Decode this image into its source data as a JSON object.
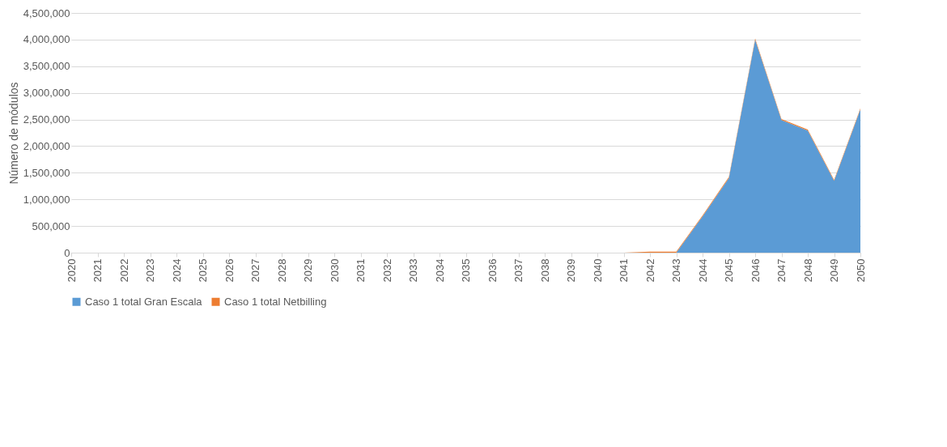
{
  "chart_data": {
    "type": "area",
    "stacked": true,
    "ylabel": "Número de módulos",
    "categories": [
      "2020",
      "2021",
      "2022",
      "2023",
      "2024",
      "2025",
      "2026",
      "2027",
      "2028",
      "2029",
      "2030",
      "2031",
      "2032",
      "2033",
      "2034",
      "2035",
      "2036",
      "2037",
      "2038",
      "2039",
      "2040",
      "2041",
      "2042",
      "2043",
      "2044",
      "2045",
      "2046",
      "2047",
      "2048",
      "2049",
      "2050"
    ],
    "series": [
      {
        "name": "Caso 1 total Gran Escala",
        "color": "#5b9bd5",
        "values": [
          0,
          0,
          0,
          0,
          0,
          0,
          0,
          0,
          0,
          0,
          0,
          0,
          0,
          0,
          0,
          0,
          0,
          0,
          0,
          0,
          0,
          0,
          0,
          0,
          680000,
          1400000,
          4000000,
          2490000,
          2290000,
          1350000,
          2690000
        ]
      },
      {
        "name": "Caso 1 total Netbilling",
        "color": "#ed7d31",
        "values": [
          0,
          0,
          0,
          0,
          0,
          0,
          0,
          0,
          0,
          0,
          0,
          0,
          0,
          0,
          0,
          0,
          0,
          0,
          0,
          0,
          0,
          0,
          20000,
          20000,
          20000,
          20000,
          20000,
          20000,
          20000,
          20000,
          20000
        ]
      }
    ],
    "ylim": [
      0,
      4500000
    ],
    "yticks": [
      0,
      {
        "value": 500000,
        "label": "500,000"
      },
      {
        "value": 1000000,
        "label": "1,000,000"
      },
      {
        "value": 1500000,
        "label": "1,500,000"
      },
      {
        "value": 2000000,
        "label": "2,000,000"
      },
      {
        "value": 2500000,
        "label": "2,500,000"
      },
      {
        "value": 3000000,
        "label": "3,000,000"
      },
      {
        "value": 3500000,
        "label": "3,500,000"
      },
      {
        "value": 4000000,
        "label": "4,000,000"
      },
      {
        "value": 4500000,
        "label": "4,500,000"
      }
    ],
    "grid": "y",
    "legend": "bottom"
  }
}
